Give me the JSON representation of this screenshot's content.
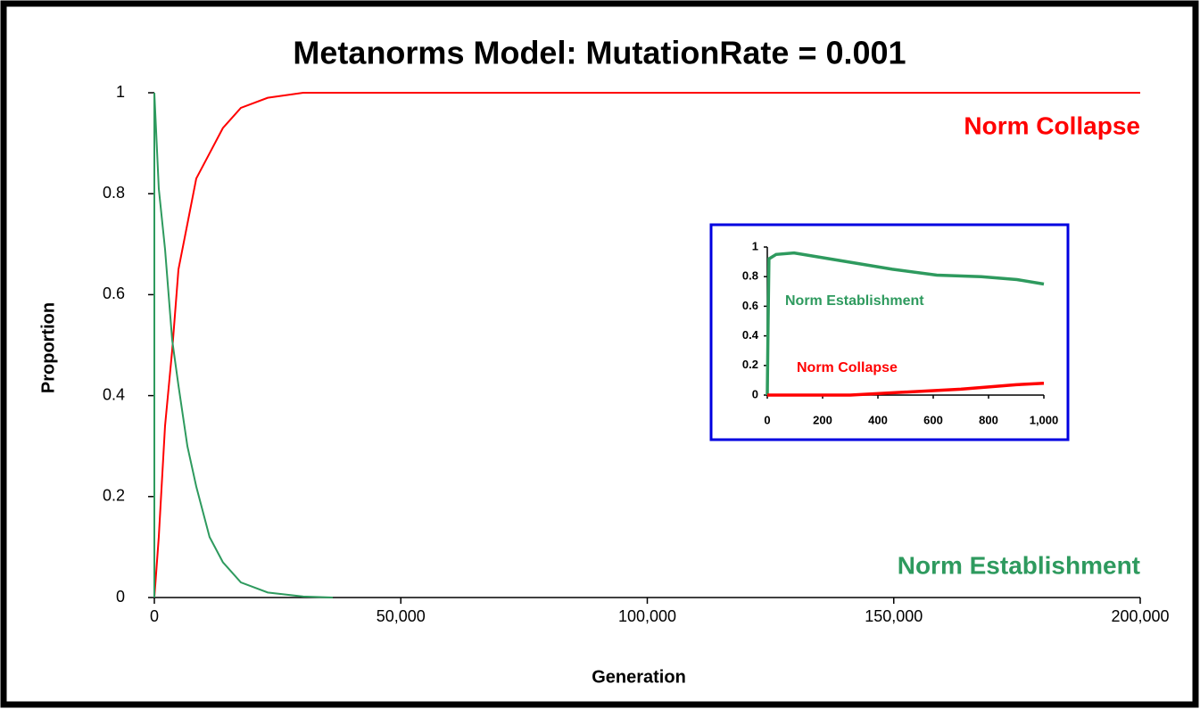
{
  "chart_data": [
    {
      "type": "line",
      "title": "Metanorms Model: MutationRate = 0.001",
      "x_label": "Generation",
      "y_label": "Proportion",
      "xlim": [
        0,
        200000
      ],
      "ylim": [
        0,
        1
      ],
      "xticks": [
        0,
        {
          "value": 50000,
          "label": "50,000"
        },
        {
          "value": 100000,
          "label": "100,000"
        },
        {
          "value": 150000,
          "label": "150,000"
        },
        {
          "value": 200000,
          "label": "200,000"
        }
      ],
      "yticks": [
        0,
        0.2,
        0.4,
        0.6,
        0.8,
        1
      ],
      "series": [
        {
          "name": "Norm Collapse",
          "color": "#ff0000",
          "x": [
            0,
            900,
            2170,
            3620,
            4890,
            6700,
            8500,
            11200,
            13900,
            17550,
            23000,
            30200,
            200000
          ],
          "values": [
            0,
            0.12,
            0.34,
            0.49,
            0.65,
            0.74,
            0.83,
            0.88,
            0.93,
            0.97,
            0.99,
            1,
            1
          ]
        },
        {
          "name": "Norm Establishment",
          "color": "#2e9a5e",
          "x": [
            0,
            0,
            900,
            2170,
            3620,
            4890,
            6700,
            8500,
            11200,
            13900,
            17550,
            23000,
            30200,
            36200
          ],
          "values": [
            0,
            1,
            0.81,
            0.69,
            0.51,
            0.42,
            0.3,
            0.22,
            0.12,
            0.07,
            0.03,
            0.01,
            0.002,
            0
          ]
        }
      ]
    },
    {
      "type": "line",
      "xlim": [
        0,
        1000
      ],
      "ylim": [
        0,
        1
      ],
      "xticks": [
        0,
        200,
        400,
        600,
        800,
        {
          "value": 1000,
          "label": "1,000"
        }
      ],
      "yticks": [
        0,
        0.2,
        0.4,
        0.6,
        0.8,
        1
      ],
      "series": [
        {
          "name": "Norm Establishment",
          "color": "#2e9a5e",
          "x": [
            0,
            3,
            6,
            32,
            97,
            194,
            323,
            452,
            613,
            774,
            903,
            1000
          ],
          "values": [
            0,
            0.5,
            0.92,
            0.95,
            0.96,
            0.93,
            0.89,
            0.85,
            0.81,
            0.8,
            0.78,
            0.75
          ]
        },
        {
          "name": "Norm Collapse",
          "color": "#ff0000",
          "x": [
            0,
            300,
            500,
            700,
            900,
            1000
          ],
          "values": [
            0,
            0,
            0.02,
            0.04,
            0.07,
            0.08
          ]
        }
      ]
    }
  ]
}
